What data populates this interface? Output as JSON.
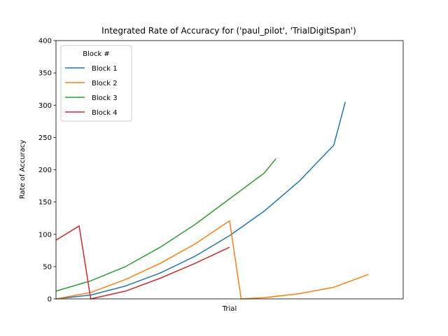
{
  "chart_data": {
    "type": "line",
    "title": "Integrated Rate of Accuracy for ('paul_pilot', 'TrialDigitSpan')",
    "xlabel": "Trial",
    "ylabel": "Rate of Accuracy",
    "xlim": [
      0,
      30
    ],
    "ylim": [
      0,
      400
    ],
    "yticks": [
      "0",
      "50",
      "100",
      "150",
      "200",
      "250",
      "300",
      "350",
      "400"
    ],
    "grid": false,
    "legend": {
      "title": "Block #",
      "position": "top-left"
    },
    "series": [
      {
        "name": "Block 1",
        "color": "#1f77b4",
        "x": [
          0,
          3,
          6,
          9,
          12,
          15,
          18,
          21,
          24,
          25
        ],
        "y": [
          0,
          6,
          20,
          40,
          66,
          98,
          136,
          182,
          238,
          305
        ]
      },
      {
        "name": "Block 2",
        "color": "#ff7f0e",
        "x": [
          0,
          3,
          6,
          9,
          12,
          15,
          16,
          18,
          21,
          24,
          27
        ],
        "y": [
          0,
          10,
          30,
          55,
          85,
          121,
          0,
          2,
          8,
          18,
          38
        ]
      },
      {
        "name": "Block 3",
        "color": "#2ca02c",
        "x": [
          0,
          3,
          6,
          9,
          12,
          15,
          18,
          19
        ],
        "y": [
          12,
          28,
          50,
          80,
          115,
          155,
          195,
          217
        ]
      },
      {
        "name": "Block 4",
        "color": "#d62728",
        "x": [
          0,
          2,
          3,
          6,
          9,
          12,
          15
        ],
        "y": [
          91,
          113,
          0,
          12,
          32,
          55,
          80
        ]
      }
    ]
  }
}
